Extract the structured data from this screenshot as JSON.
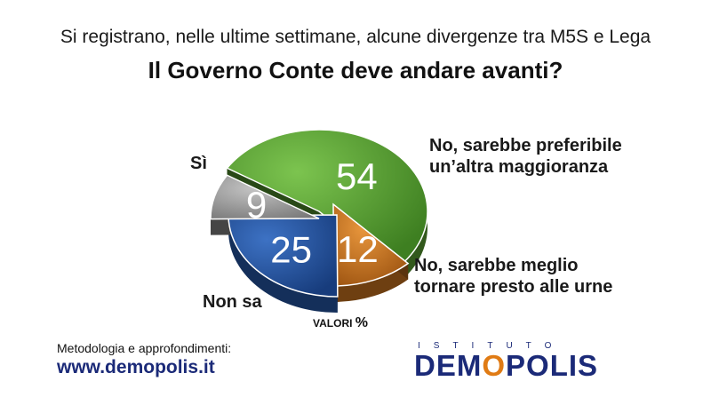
{
  "header": {
    "subtitle": "Si registrano, nelle ultime settimane, alcune divergenze tra M5S e Lega",
    "title": "Il Governo Conte deve andare avanti?"
  },
  "chart_data": {
    "type": "pie",
    "title": "Il Governo Conte deve andare avanti?",
    "unit_note": "VALORI %",
    "slices": [
      {
        "label": "Sì",
        "value": 54,
        "color": "#5aa232"
      },
      {
        "label": "No, sarebbe preferibile un’altra maggioranza",
        "value": 12,
        "color": "#c8731f"
      },
      {
        "label": "No, sarebbe meglio tornare presto alle urne",
        "value": 25,
        "color": "#2456a4"
      },
      {
        "label": "Non sa",
        "value": 9,
        "color": "#9a9a9a"
      }
    ]
  },
  "labels": {
    "si": "Sì",
    "no12_line1": "No, sarebbe preferibile",
    "no12_line2": "un’altra maggioranza",
    "no25_line1": "No, sarebbe meglio",
    "no25_line2": "tornare presto alle urne",
    "nonsa": "Non sa"
  },
  "valori": {
    "text": "VALORI",
    "pct": "%"
  },
  "footer": {
    "methodology": "Metodologia e approfondimenti:",
    "website": "www.demopolis.it",
    "logo_top": "ISTITUTO",
    "logo_main_a": "DEM",
    "logo_main_o": "O",
    "logo_main_b": "POLIS"
  }
}
